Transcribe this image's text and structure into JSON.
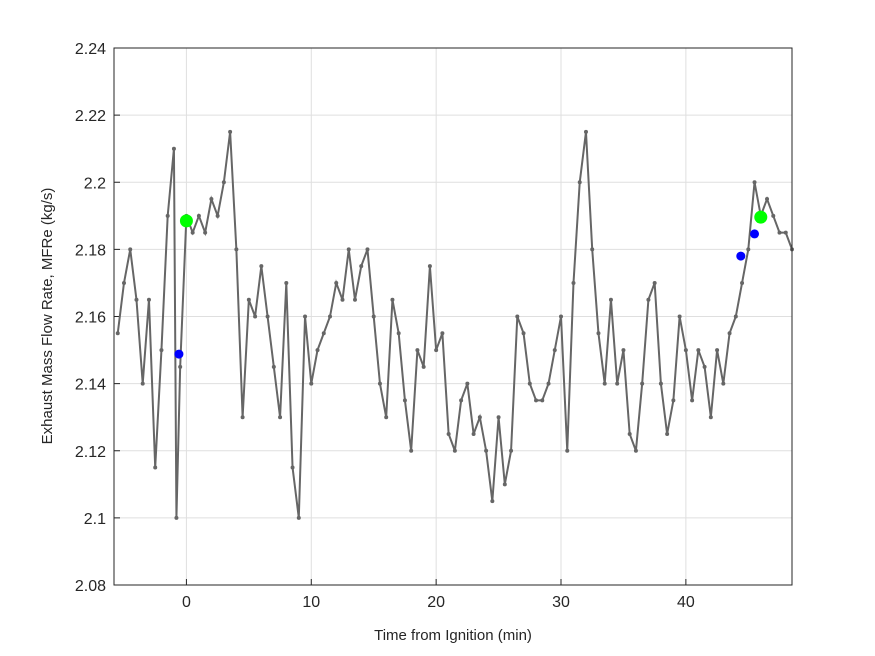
{
  "chart_data": {
    "type": "line",
    "title": "",
    "xlabel": "Time from Ignition (min)",
    "ylabel": "Exhaust Mass Flow Rate, MFRe (kg/s)",
    "xlim": [
      -5.8,
      48.5
    ],
    "ylim": [
      2.08,
      2.24
    ],
    "xticks": [
      0,
      10,
      20,
      30,
      40
    ],
    "xtick_labels": [
      "0",
      "10",
      "20",
      "30",
      "40"
    ],
    "yticks": [
      2.08,
      2.1,
      2.12,
      2.14,
      2.16,
      2.18,
      2.2,
      2.22,
      2.24
    ],
    "ytick_labels": [
      "2.08",
      "2.1",
      "2.12",
      "2.14",
      "2.16",
      "2.18",
      "2.2",
      "2.22",
      "2.24"
    ],
    "grid": true,
    "series": [
      {
        "name": "MFRe",
        "color": "#666666",
        "x": [
          -5.5,
          -5,
          -4.5,
          -4,
          -3.5,
          -3,
          -2.5,
          -2,
          -1.5,
          -1,
          -0.8,
          -0.5,
          0,
          0.5,
          1,
          1.5,
          2,
          2.5,
          3,
          3.5,
          4,
          4.5,
          5,
          5.5,
          6,
          6.5,
          7,
          7.5,
          8,
          8.5,
          9,
          9.5,
          10,
          10.5,
          11,
          11.5,
          12,
          12.5,
          13,
          13.5,
          14,
          14.5,
          15,
          15.5,
          16,
          16.5,
          17,
          17.5,
          18,
          18.5,
          19,
          19.5,
          20,
          20.5,
          21,
          21.5,
          22,
          22.5,
          23,
          23.5,
          24,
          24.5,
          25,
          25.5,
          26,
          26.5,
          27,
          27.5,
          28,
          28.5,
          29,
          29.5,
          30,
          30.5,
          31,
          31.5,
          32,
          32.5,
          33,
          33.5,
          34,
          34.5,
          35,
          35.5,
          36,
          36.5,
          37,
          37.5,
          38,
          38.5,
          39,
          39.5,
          40,
          40.5,
          41,
          41.5,
          42,
          42.5,
          43,
          43.5,
          44,
          44.5,
          45,
          45.5,
          46,
          46.5,
          47,
          47.5,
          48,
          48.5
        ],
        "y": [
          2.155,
          2.17,
          2.18,
          2.165,
          2.14,
          2.165,
          2.115,
          2.15,
          2.19,
          2.21,
          2.1,
          2.145,
          2.19,
          2.185,
          2.19,
          2.185,
          2.195,
          2.19,
          2.2,
          2.215,
          2.18,
          2.13,
          2.165,
          2.16,
          2.175,
          2.16,
          2.145,
          2.13,
          2.17,
          2.115,
          2.1,
          2.16,
          2.14,
          2.15,
          2.155,
          2.16,
          2.17,
          2.165,
          2.18,
          2.165,
          2.175,
          2.18,
          2.16,
          2.14,
          2.13,
          2.165,
          2.155,
          2.135,
          2.12,
          2.15,
          2.145,
          2.175,
          2.15,
          2.155,
          2.125,
          2.12,
          2.135,
          2.14,
          2.125,
          2.13,
          2.12,
          2.105,
          2.13,
          2.11,
          2.12,
          2.16,
          2.155,
          2.14,
          2.135,
          2.135,
          2.14,
          2.15,
          2.16,
          2.12,
          2.17,
          2.2,
          2.215,
          2.18,
          2.155,
          2.14,
          2.165,
          2.14,
          2.15,
          2.125,
          2.12,
          2.14,
          2.165,
          2.17,
          2.14,
          2.125,
          2.135,
          2.16,
          2.15,
          2.135,
          2.15,
          2.145,
          2.13,
          2.15,
          2.14,
          2.155,
          2.16,
          2.17,
          2.18,
          2.2,
          2.19,
          2.195,
          2.19,
          2.185,
          2.185,
          2.18
        ]
      },
      {
        "name": "blue markers",
        "color": "#0000ff",
        "x": [
          -0.6,
          44.4,
          45.5
        ],
        "y": [
          2.1488,
          2.178,
          2.1846
        ]
      },
      {
        "name": "green markers",
        "color": "#00ff00",
        "x": [
          0.0,
          46.0
        ],
        "y": [
          2.1885,
          2.1896
        ]
      }
    ]
  }
}
